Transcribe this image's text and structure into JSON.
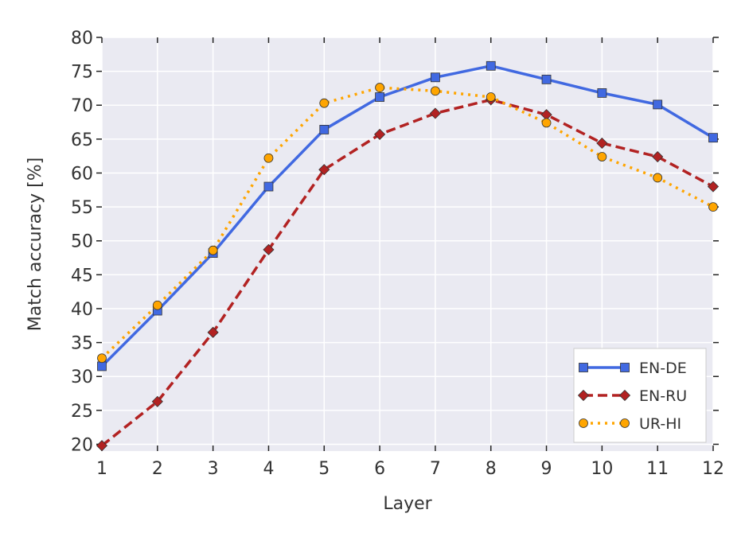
{
  "chart_data": {
    "type": "line",
    "title": "",
    "xlabel": "Layer",
    "ylabel": "Match accuracy [%]",
    "x": [
      1,
      2,
      3,
      4,
      5,
      6,
      7,
      8,
      9,
      10,
      11,
      12
    ],
    "xlim": [
      1,
      12
    ],
    "ylim": [
      19,
      80
    ],
    "xticks": [
      1,
      2,
      3,
      4,
      5,
      6,
      7,
      8,
      9,
      10,
      11,
      12
    ],
    "yticks": [
      20,
      25,
      30,
      35,
      40,
      45,
      50,
      55,
      60,
      65,
      70,
      75,
      80
    ],
    "grid": true,
    "legend_position": "lower-right",
    "series": [
      {
        "name": "EN-DE",
        "color": "#4169E1",
        "line_style": "solid",
        "marker": "square",
        "values": [
          31.5,
          39.7,
          48.2,
          58.0,
          66.4,
          71.2,
          74.1,
          75.8,
          73.8,
          71.8,
          70.1,
          65.2
        ]
      },
      {
        "name": "EN-RU",
        "color": "#B22222",
        "line_style": "dashed",
        "marker": "diamond",
        "values": [
          19.8,
          26.3,
          36.5,
          48.7,
          60.5,
          65.7,
          68.8,
          70.8,
          68.6,
          64.4,
          62.4,
          58.0
        ]
      },
      {
        "name": "UR-HI",
        "color": "#FFA500",
        "line_style": "dotted",
        "marker": "circle",
        "values": [
          32.7,
          40.5,
          48.6,
          62.2,
          70.3,
          72.6,
          72.1,
          71.2,
          67.4,
          62.4,
          59.3,
          55.0
        ]
      }
    ]
  }
}
